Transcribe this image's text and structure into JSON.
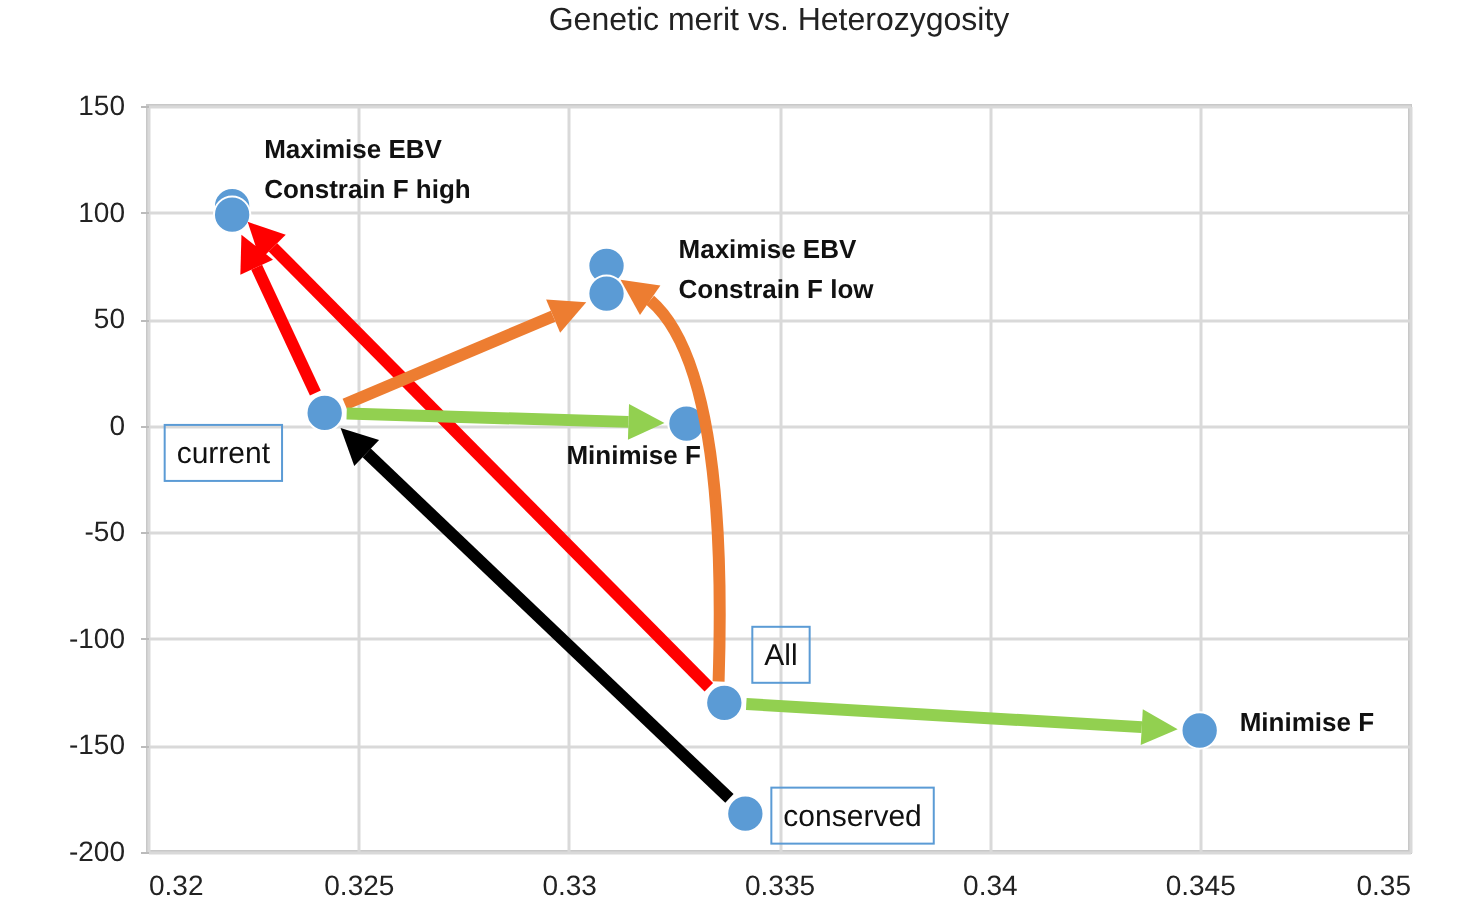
{
  "chart_data": {
    "type": "scatter",
    "title": "Genetic merit vs. Heterozygosity",
    "x": [
      0.3242,
      0.322,
      0.322,
      0.3309,
      0.3309,
      0.3328,
      0.3337,
      0.3342,
      0.345
    ],
    "series": [
      {
        "color": "#5b9bd5",
        "values": [
          6,
          103,
          99,
          75,
          62,
          1,
          -130,
          -182,
          -143
        ]
      }
    ],
    "xlim": [
      0.32,
      0.35
    ],
    "xticks": [
      0.32,
      0.325,
      0.33,
      0.335,
      0.34,
      0.345,
      0.35
    ],
    "ylim": [
      -200,
      150
    ],
    "yticks": [
      -200,
      -150,
      -100,
      -50,
      0,
      50,
      100,
      150
    ],
    "grid": true,
    "marker": "circle",
    "annotations": [
      {
        "text": "current",
        "x": 0.3242,
        "y": 6
      },
      {
        "text": "Maximise EBV\nConstrain F high",
        "x": 0.322,
        "y": 103
      },
      {
        "text": "Maximise EBV\nConstrain F low",
        "x": 0.3309,
        "y": 75
      },
      {
        "text": "Minimise F",
        "x": 0.3328,
        "y": 1
      },
      {
        "text": "All",
        "x": 0.3337,
        "y": -130
      },
      {
        "text": "conserved",
        "x": 0.3342,
        "y": -182
      },
      {
        "text": "Minimise F",
        "x": 0.345,
        "y": -143
      }
    ]
  }
}
